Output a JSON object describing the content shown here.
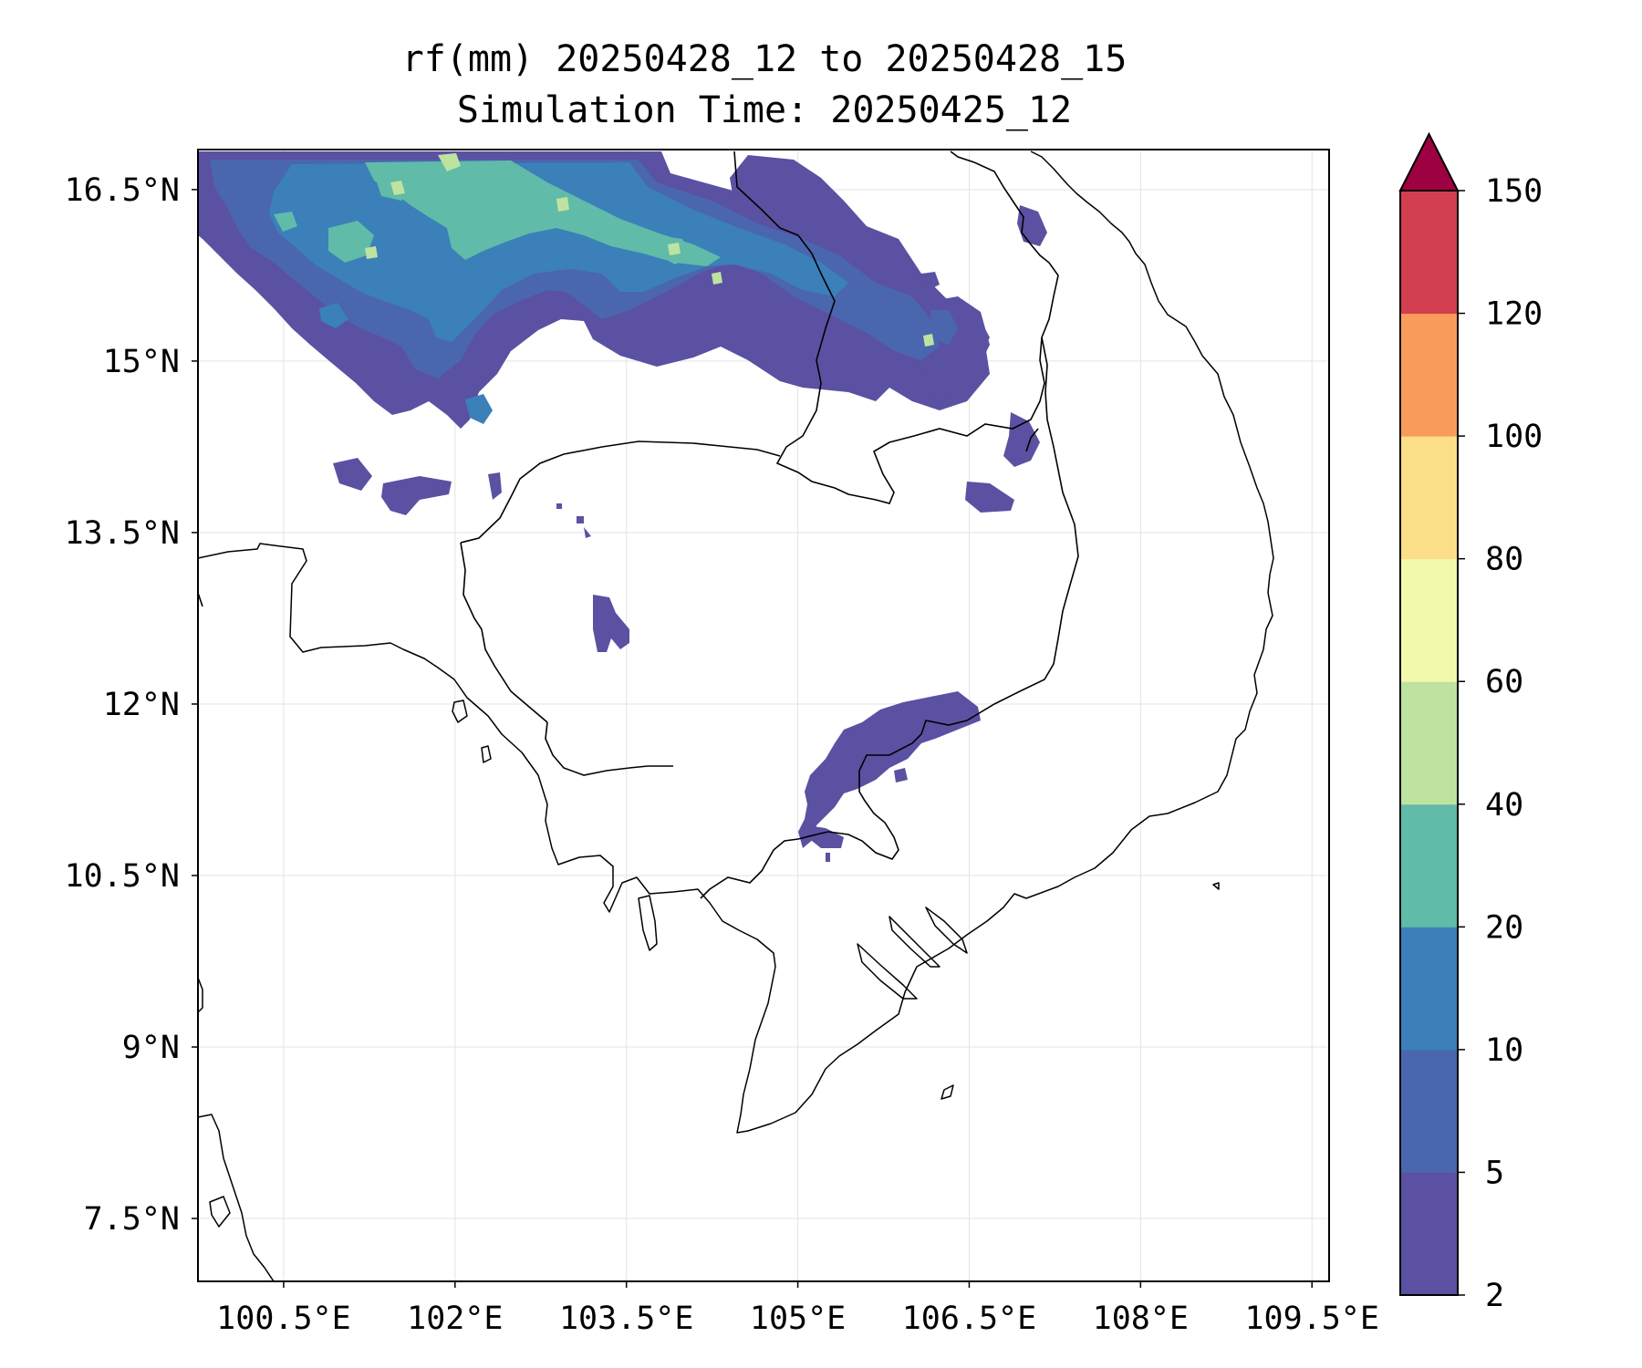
{
  "title": {
    "line1": "rf(mm) 20250428_12 to 20250428_15",
    "line2": "Simulation Time: 20250425_12"
  },
  "map": {
    "lon_range": [
      99.75,
      109.65
    ],
    "lat_range": [
      6.95,
      16.85
    ],
    "lon_ticks": [
      100.5,
      102,
      103.5,
      105,
      106.5,
      108,
      109.5
    ],
    "lon_tick_labels": [
      "100.5°E",
      "102°E",
      "103.5°E",
      "105°E",
      "106.5°E",
      "108°E",
      "109.5°E"
    ],
    "lat_ticks": [
      16.5,
      15,
      13.5,
      12,
      10.5,
      9,
      7.5
    ],
    "lat_tick_labels": [
      "16.5°N",
      "15°N",
      "13.5°N",
      "12°N",
      "10.5°N",
      "9°N",
      "7.5°N"
    ],
    "gridlines": true
  },
  "colorbar": {
    "levels": [
      2,
      5,
      10,
      20,
      40,
      60,
      80,
      100,
      120,
      150
    ],
    "level_labels": [
      "2",
      "5",
      "10",
      "20",
      "40",
      "60",
      "80",
      "100",
      "120",
      "150"
    ],
    "colors": [
      "#5a51a2",
      "#4a66ae",
      "#3b80b9",
      "#60bba8",
      "#bee3a0",
      "#f2f9ad",
      "#fbde88",
      "#f99b5b",
      "#d23f4e"
    ],
    "extend_color": "#9e0142",
    "extend": "max"
  },
  "chart_data": {
    "type": "filled-contour-map",
    "variable": "rf(mm)",
    "period": "20250428_12 to 20250428_15",
    "simulation_time": "20250425_12",
    "precip_regions": [
      {
        "name": "northern band",
        "max_class_mm": "40-60"
      },
      {
        "name": "southern cambodia-vietnam border cell",
        "max_class_mm": "2-5"
      },
      {
        "name": "central cambodia small cell",
        "max_class_mm": "2-5"
      }
    ]
  }
}
